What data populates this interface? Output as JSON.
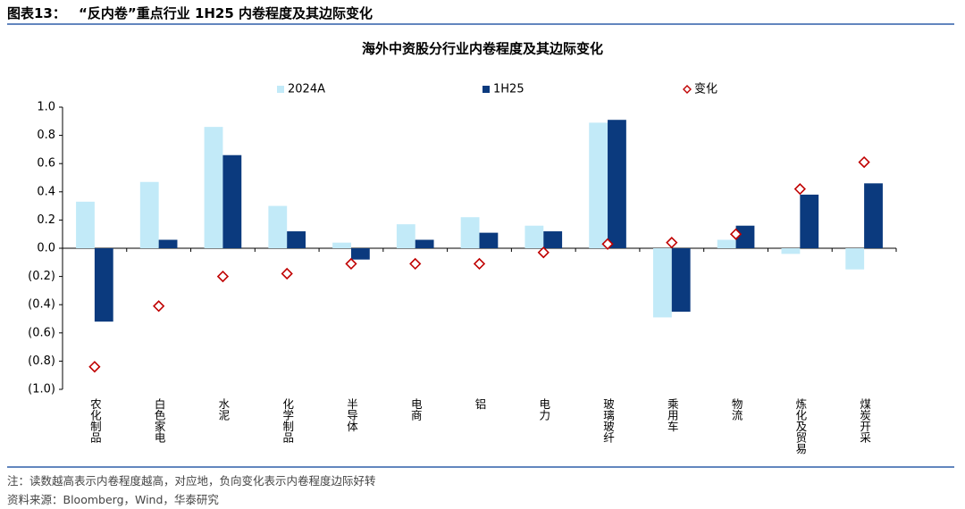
{
  "header": {
    "figure_label": "图表13：",
    "title": "“反内卷”重点行业 1H25 内卷程度及其边际变化"
  },
  "chart_data": {
    "type": "bar",
    "title": "海外中资股分行业内卷程度及其边际变化",
    "categories": [
      "农化制品",
      "白色家电",
      "水泥",
      "化学制品",
      "半导体",
      "电商",
      "铝",
      "电力",
      "玻璃玻纤",
      "乘用车",
      "物流",
      "炼化及贸易",
      "煤炭开采"
    ],
    "series": [
      {
        "name": "2024A",
        "type": "bar",
        "color": "#c2eaf8",
        "values": [
          0.33,
          0.47,
          0.86,
          0.3,
          0.04,
          0.17,
          0.22,
          0.16,
          0.89,
          -0.49,
          0.06,
          -0.04,
          -0.15
        ]
      },
      {
        "name": "1H25",
        "type": "bar",
        "color": "#0b3a7e",
        "values": [
          -0.52,
          0.06,
          0.66,
          0.12,
          -0.08,
          0.06,
          0.11,
          0.12,
          0.91,
          -0.45,
          0.16,
          0.38,
          0.46
        ]
      },
      {
        "name": "变化",
        "type": "scatter",
        "color": "#c00000",
        "values": [
          -0.84,
          -0.41,
          -0.2,
          -0.18,
          -0.11,
          -0.11,
          -0.11,
          -0.03,
          0.03,
          0.04,
          0.1,
          0.42,
          0.61
        ]
      }
    ],
    "ylim": [
      -1.0,
      1.0
    ],
    "yticks": [
      {
        "value": 1.0,
        "label": "1.0"
      },
      0.8,
      0.6,
      0.4,
      0.2,
      {
        "value": 0,
        "label": "0.0"
      },
      {
        "value": -0.2,
        "label": "(0.2)"
      },
      {
        "value": -0.4,
        "label": "(0.4)"
      },
      {
        "value": -0.6,
        "label": "(0.6)"
      },
      {
        "value": -0.8,
        "label": "(0.8)"
      },
      {
        "value": -1.0,
        "label": "(1.0)"
      }
    ],
    "grid": false
  },
  "footer": {
    "note": "注：读数越高表示内卷程度越高，对应地，负向变化表示内卷程度边际好转",
    "source": "资料来源：Bloomberg，Wind，华泰研究"
  }
}
